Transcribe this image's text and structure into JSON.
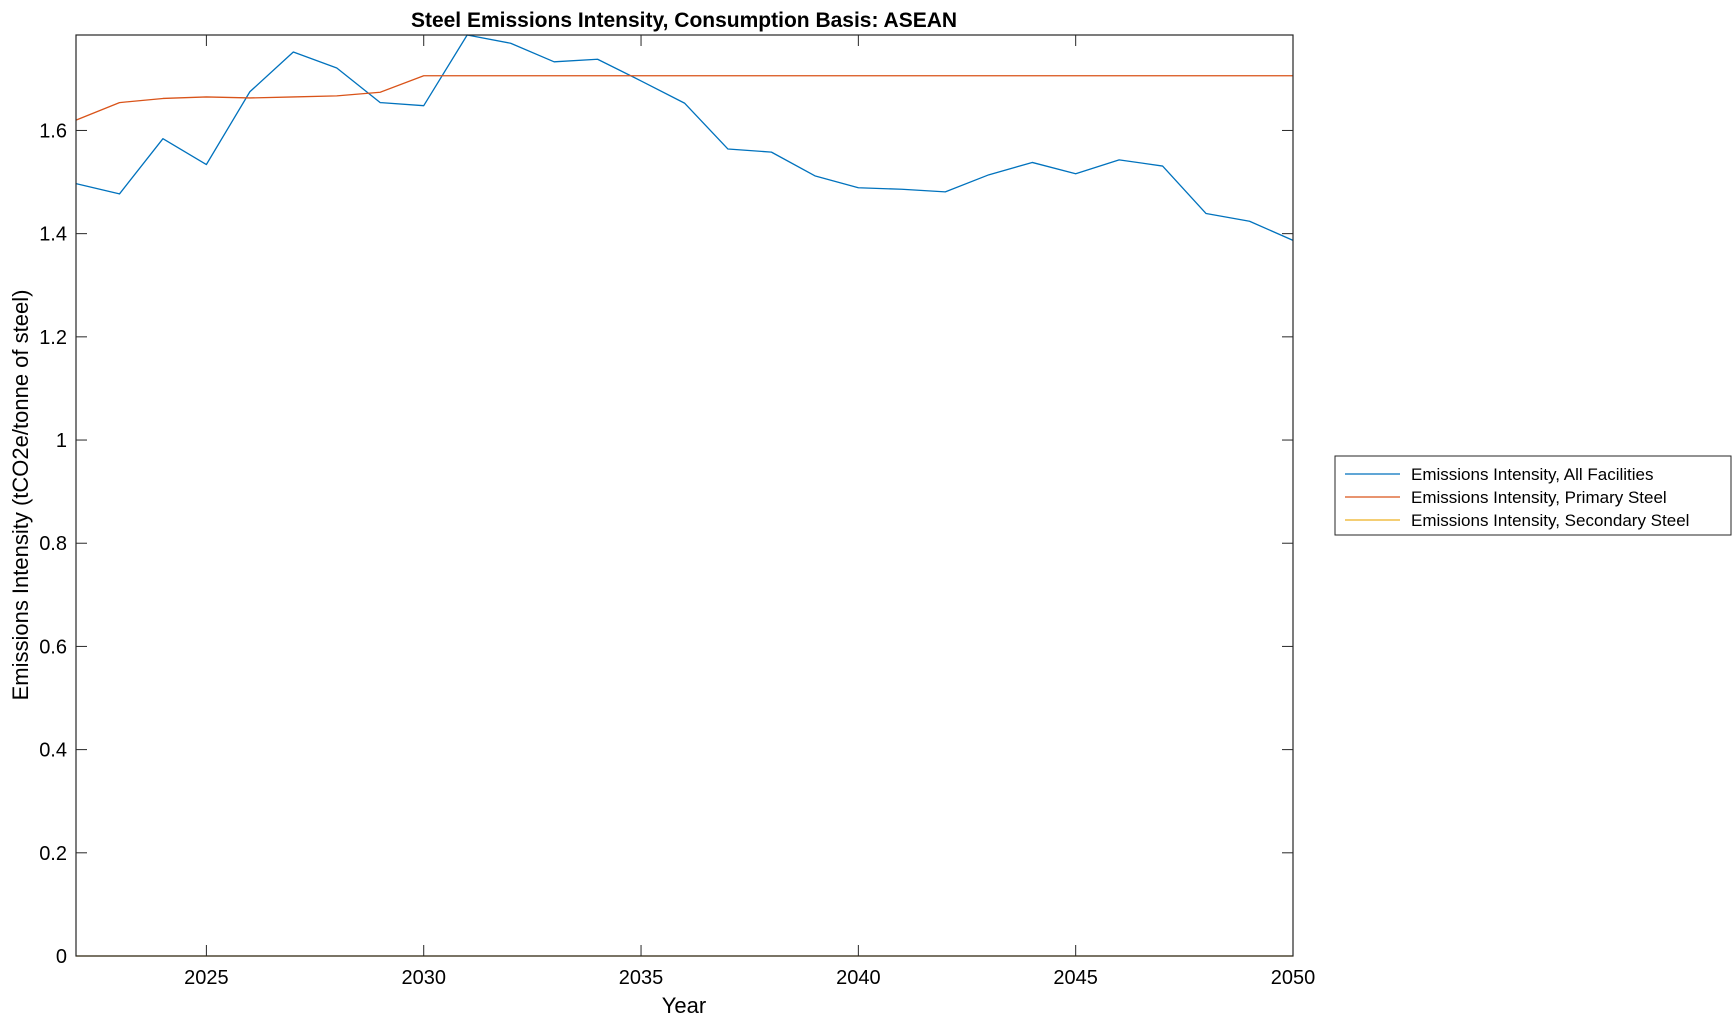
{
  "chart_data": {
    "type": "line",
    "title": "Steel Emissions Intensity, Consumption Basis: ASEAN",
    "xlabel": "Year",
    "ylabel": "Emissions Intensity (tCO2e/tonne of steel)",
    "xlim": [
      2022,
      2050
    ],
    "ylim": [
      0,
      1.785
    ],
    "xticks": [
      2025,
      2030,
      2035,
      2040,
      2045,
      2050
    ],
    "yticks": [
      0,
      0.2,
      0.4,
      0.6,
      0.8,
      1,
      1.2,
      1.4,
      1.6
    ],
    "xtick_labels": [
      "2025",
      "2030",
      "2035",
      "2040",
      "2045",
      "2050"
    ],
    "ytick_labels": [
      "0",
      "0.2",
      "0.4",
      "0.6",
      "0.8",
      "1",
      "1.2",
      "1.4",
      "1.6"
    ],
    "grid": false,
    "legend_position": "outside right",
    "x": [
      2022,
      2023,
      2024,
      2025,
      2026,
      2027,
      2028,
      2029,
      2030,
      2031,
      2032,
      2033,
      2034,
      2035,
      2036,
      2037,
      2038,
      2039,
      2040,
      2041,
      2042,
      2043,
      2044,
      2045,
      2046,
      2047,
      2048,
      2049,
      2050
    ],
    "series": [
      {
        "name": "Emissions Intensity, All Facilities",
        "color": "#0072BD",
        "values": [
          1.497,
          1.477,
          1.584,
          1.534,
          1.675,
          1.752,
          1.721,
          1.654,
          1.648,
          1.785,
          1.769,
          1.733,
          1.738,
          1.696,
          1.653,
          1.564,
          1.558,
          1.512,
          1.489,
          1.486,
          1.481,
          1.514,
          1.538,
          1.516,
          1.543,
          1.531,
          1.439,
          1.424,
          1.387
        ]
      },
      {
        "name": "Emissions Intensity, Primary Steel",
        "color": "#D95319",
        "values": [
          1.62,
          1.654,
          1.662,
          1.665,
          1.663,
          1.665,
          1.667,
          1.674,
          1.706,
          1.706,
          1.706,
          1.706,
          1.706,
          1.706,
          1.706,
          1.706,
          1.706,
          1.706,
          1.706,
          1.706,
          1.706,
          1.706,
          1.706,
          1.706,
          1.706,
          1.706,
          1.706,
          1.706,
          1.706
        ]
      },
      {
        "name": "Emissions Intensity, Secondary Steel",
        "color": "#EDB120",
        "values": [
          0,
          0,
          0,
          0,
          0,
          0,
          0,
          0,
          0,
          0,
          0,
          0,
          0,
          0,
          0,
          0,
          0,
          0,
          0,
          0,
          0,
          0,
          0,
          0,
          0,
          0,
          0,
          0,
          0
        ]
      }
    ]
  }
}
